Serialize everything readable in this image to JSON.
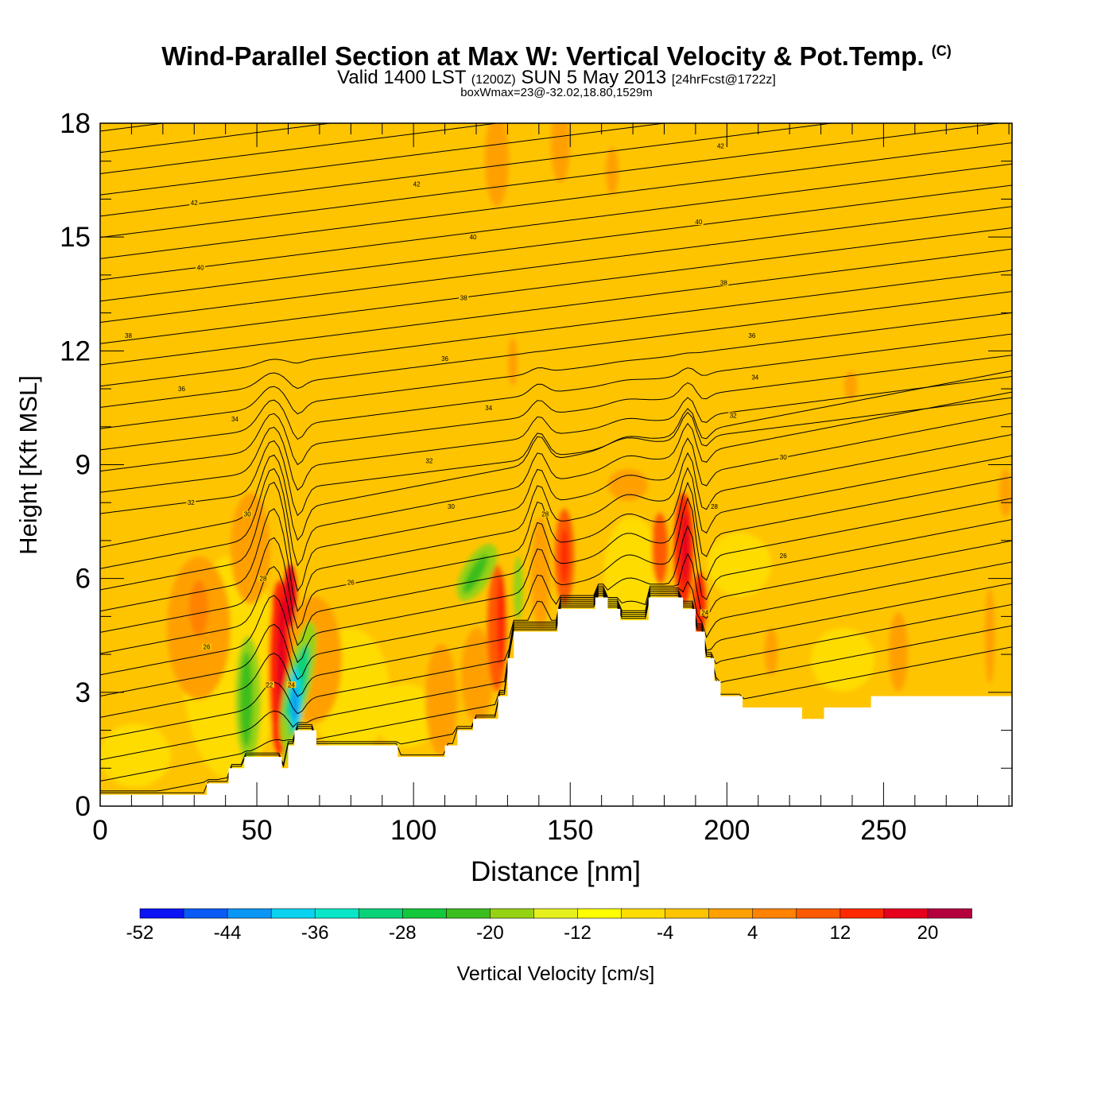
{
  "title": {
    "main": "Wind-Parallel Section at Max W: Vertical Velocity & Pot.Temp.",
    "copyright": "(C)",
    "valid_prefix": "Valid 1400 LST",
    "valid_utc": "(1200Z)",
    "valid_date": "SUN 5 May 2013",
    "forecast": "[24hrFcst@1722z]",
    "box_info": "boxWmax=23@-32.02,18.80,1529m"
  },
  "chart_data": {
    "type": "heatmap",
    "xlabel": "Distance [nm]",
    "ylabel": "Height [Kft MSL]",
    "xlim": [
      0,
      291
    ],
    "ylim": [
      0,
      18
    ],
    "x_ticks": [
      "0",
      "50",
      "100",
      "150",
      "200",
      "250"
    ],
    "x_tick_values": [
      0,
      50,
      100,
      150,
      200,
      250
    ],
    "y_ticks": [
      "0",
      "3",
      "6",
      "9",
      "12",
      "15",
      "18"
    ],
    "y_tick_values": [
      0,
      3,
      6,
      9,
      12,
      15,
      18
    ],
    "background_value_color": "#ffc400",
    "colorbar": {
      "label": "Vertical Velocity [cm/s]",
      "tick_labels": [
        "-52",
        "-44",
        "-36",
        "-28",
        "-20",
        "-12",
        "-4",
        "4",
        "12",
        "20"
      ],
      "colors": [
        "#0a14f5",
        "#0a5af5",
        "#0a96f5",
        "#0ad2f0",
        "#0ae6c8",
        "#0ad278",
        "#14c83c",
        "#3cbe1e",
        "#96d214",
        "#e6f01e",
        "#ffff00",
        "#ffdc00",
        "#ffc400",
        "#ffa000",
        "#ff8200",
        "#ff5a00",
        "#ff2800",
        "#e6001e",
        "#b4003c"
      ]
    },
    "terrain": [
      [
        0,
        0.3
      ],
      [
        34,
        0.3
      ],
      [
        34,
        0.6
      ],
      [
        41,
        0.6
      ],
      [
        41,
        1.0
      ],
      [
        46,
        1.0
      ],
      [
        46,
        1.3
      ],
      [
        58,
        1.3
      ],
      [
        58,
        1.0
      ],
      [
        60,
        1.0
      ],
      [
        60,
        1.6
      ],
      [
        62,
        1.6
      ],
      [
        62,
        2.0
      ],
      [
        69,
        2.0
      ],
      [
        69,
        1.6
      ],
      [
        95,
        1.6
      ],
      [
        95,
        1.3
      ],
      [
        110,
        1.3
      ],
      [
        110,
        1.6
      ],
      [
        114,
        1.6
      ],
      [
        114,
        2.0
      ],
      [
        119,
        2.0
      ],
      [
        119,
        2.3
      ],
      [
        127,
        2.3
      ],
      [
        127,
        2.9
      ],
      [
        130,
        2.9
      ],
      [
        130,
        3.9
      ],
      [
        132,
        3.9
      ],
      [
        132,
        4.6
      ],
      [
        146,
        4.6
      ],
      [
        146,
        5.2
      ],
      [
        158,
        5.2
      ],
      [
        158,
        5.5
      ],
      [
        162,
        5.5
      ],
      [
        162,
        5.2
      ],
      [
        166,
        5.2
      ],
      [
        166,
        4.9
      ],
      [
        175,
        4.9
      ],
      [
        175,
        5.5
      ],
      [
        186,
        5.5
      ],
      [
        186,
        5.2
      ],
      [
        190,
        5.2
      ],
      [
        190,
        4.6
      ],
      [
        193,
        4.6
      ],
      [
        193,
        3.9
      ],
      [
        196,
        3.9
      ],
      [
        196,
        3.3
      ],
      [
        198,
        3.3
      ],
      [
        198,
        2.9
      ],
      [
        205,
        2.9
      ],
      [
        205,
        2.6
      ],
      [
        224,
        2.6
      ],
      [
        224,
        2.3
      ],
      [
        231,
        2.3
      ],
      [
        231,
        2.6
      ],
      [
        246,
        2.6
      ],
      [
        246,
        2.9
      ],
      [
        291,
        2.9
      ]
    ],
    "contour_labels": [
      {
        "text": "42",
        "x": 198,
        "y": 17.4
      },
      {
        "text": "42",
        "x": 101,
        "y": 16.4
      },
      {
        "text": "42",
        "x": 30,
        "y": 15.9
      },
      {
        "text": "40",
        "x": 191,
        "y": 15.4
      },
      {
        "text": "40",
        "x": 119,
        "y": 15.0
      },
      {
        "text": "40",
        "x": 32,
        "y": 14.2
      },
      {
        "text": "38",
        "x": 199,
        "y": 13.8
      },
      {
        "text": "38",
        "x": 116,
        "y": 13.4
      },
      {
        "text": "38",
        "x": 9,
        "y": 12.4
      },
      {
        "text": "36",
        "x": 208,
        "y": 12.4
      },
      {
        "text": "36",
        "x": 110,
        "y": 11.8
      },
      {
        "text": "36",
        "x": 26,
        "y": 11.0
      },
      {
        "text": "34",
        "x": 209,
        "y": 11.3
      },
      {
        "text": "34",
        "x": 124,
        "y": 10.5
      },
      {
        "text": "34",
        "x": 43,
        "y": 10.2
      },
      {
        "text": "32",
        "x": 202,
        "y": 10.3
      },
      {
        "text": "32",
        "x": 105,
        "y": 9.1
      },
      {
        "text": "32",
        "x": 29,
        "y": 8.0
      },
      {
        "text": "30",
        "x": 218,
        "y": 9.2
      },
      {
        "text": "30",
        "x": 112,
        "y": 7.9
      },
      {
        "text": "30",
        "x": 47,
        "y": 7.7
      },
      {
        "text": "28",
        "x": 196,
        "y": 7.9
      },
      {
        "text": "28",
        "x": 142,
        "y": 7.7
      },
      {
        "text": "28",
        "x": 52,
        "y": 6.0
      },
      {
        "text": "26",
        "x": 218,
        "y": 6.6
      },
      {
        "text": "26",
        "x": 80,
        "y": 5.9
      },
      {
        "text": "26",
        "x": 34,
        "y": 4.2
      },
      {
        "text": "24",
        "x": 193,
        "y": 5.1
      },
      {
        "text": "24",
        "x": 61,
        "y": 3.2
      },
      {
        "text": "22",
        "x": 54,
        "y": 3.2
      }
    ]
  }
}
